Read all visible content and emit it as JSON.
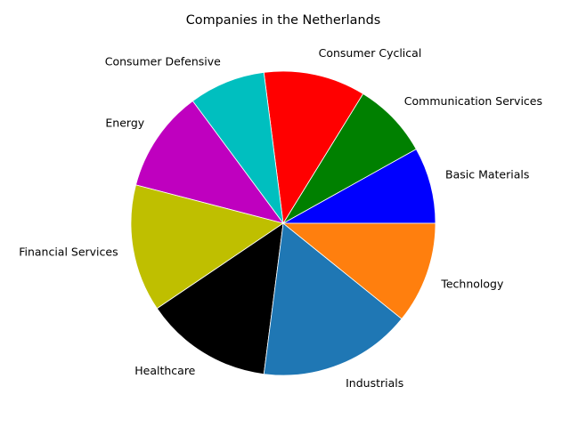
{
  "chart_data": {
    "type": "pie",
    "title": "Companies in the Netherlands",
    "start_angle_deg": 0,
    "direction": "counterclockwise",
    "slices": [
      {
        "label": "Basic Materials",
        "value": 3,
        "color": "#0000ff"
      },
      {
        "label": "Communication Services",
        "value": 3,
        "color": "#008000"
      },
      {
        "label": "Consumer Cyclical",
        "value": 4,
        "color": "#ff0000"
      },
      {
        "label": "Consumer Defensive",
        "value": 3,
        "color": "#00bfbf"
      },
      {
        "label": "Energy",
        "value": 4,
        "color": "#bf00bf"
      },
      {
        "label": "Financial Services",
        "value": 5,
        "color": "#bfbf00"
      },
      {
        "label": "Healthcare",
        "value": 5,
        "color": "#000000"
      },
      {
        "label": "Industrials",
        "value": 6,
        "color": "#1f77b4"
      },
      {
        "label": "Technology",
        "value": 4,
        "color": "#ff7f0e"
      }
    ]
  }
}
